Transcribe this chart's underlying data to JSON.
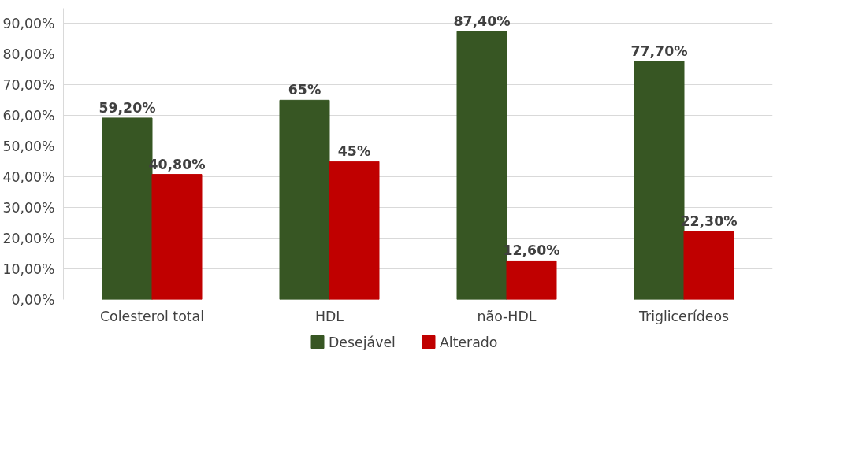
{
  "chart_data": {
    "type": "bar",
    "categories": [
      "Colesterol total",
      "HDL",
      "não-HDL",
      "Triglicerídeos"
    ],
    "series": [
      {
        "name": "Desejável",
        "color": "#375623",
        "values": [
          59.2,
          65,
          87.4,
          77.7
        ],
        "value_labels": [
          "59,20%",
          "65%",
          "87,40%",
          "77,70%"
        ]
      },
      {
        "name": "Alterado",
        "color": "#c00000",
        "values": [
          40.8,
          45,
          12.6,
          22.3
        ],
        "value_labels": [
          "40,80%",
          "45%",
          "12,60%",
          "22,30%"
        ]
      }
    ],
    "ylim": [
      0,
      95
    ],
    "yticks": [
      {
        "value": 0,
        "label": "0,00%"
      },
      {
        "value": 10,
        "label": "10,00%"
      },
      {
        "value": 20,
        "label": "20,00%"
      },
      {
        "value": 30,
        "label": "30,00%"
      },
      {
        "value": 40,
        "label": "40,00%"
      },
      {
        "value": 50,
        "label": "50,00%"
      },
      {
        "value": 60,
        "label": "60,00%"
      },
      {
        "value": 70,
        "label": "70,00%"
      },
      {
        "value": 80,
        "label": "80,00%"
      },
      {
        "value": 90,
        "label": "90,00%"
      }
    ],
    "grid": "y",
    "legend": "bottom"
  }
}
